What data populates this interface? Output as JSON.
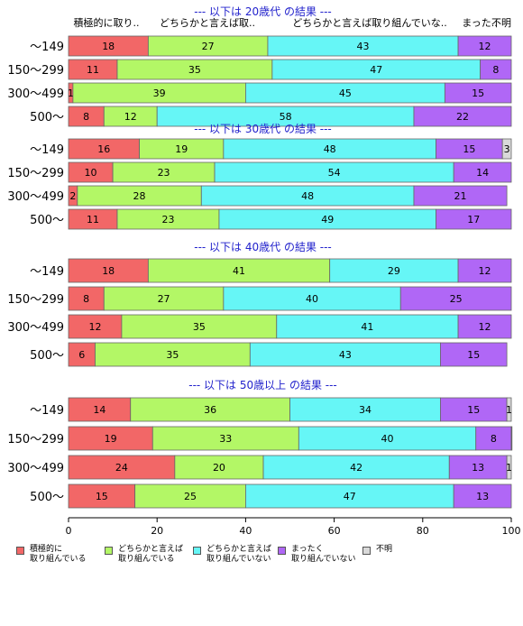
{
  "chart_data": {
    "type": "bar",
    "orientation": "horizontal",
    "stacked": true,
    "xlim": [
      0,
      100
    ],
    "xticks": [
      "0",
      "20",
      "40",
      "60",
      "80",
      "100"
    ],
    "column_headers": [
      "積極的に取り..",
      "どちらかと言えば取..",
      "どちらかと言えば取り組んでいな..",
      "まった..",
      "不明"
    ],
    "colors": [
      "#f26767",
      "#b3f766",
      "#66f6f6",
      "#b067f6",
      "#d9d9d9"
    ],
    "legend": [
      "積極的に\n取り組んでいる",
      "どちらかと言えば\n取り組んでいる",
      "どちらかと言えば\n取り組んでいない",
      "まったく\n取り組んでいない",
      "不明"
    ],
    "groups": [
      {
        "title": "--- 以下は 20歳代 の結果 ---",
        "rows": [
          {
            "label": "～149",
            "values": [
              18,
              27,
              43,
              12,
              0
            ]
          },
          {
            "label": "150～299",
            "values": [
              11,
              35,
              47,
              8,
              0
            ]
          },
          {
            "label": "300～499",
            "values": [
              1,
              39,
              45,
              15,
              0
            ]
          },
          {
            "label": "500～",
            "values": [
              8,
              12,
              58,
              22,
              0
            ]
          }
        ]
      },
      {
        "title": "--- 以下は 30歳代 の結果 ---",
        "rows": [
          {
            "label": "～149",
            "values": [
              16,
              19,
              48,
              15,
              3
            ]
          },
          {
            "label": "150～299",
            "values": [
              10,
              23,
              54,
              14,
              0
            ]
          },
          {
            "label": "300～499",
            "values": [
              2,
              28,
              48,
              21,
              0
            ]
          },
          {
            "label": "500～",
            "values": [
              11,
              23,
              49,
              17,
              0
            ]
          }
        ]
      },
      {
        "title": "--- 以下は 40歳代 の結果 ---",
        "rows": [
          {
            "label": "～149",
            "values": [
              18,
              41,
              29,
              12,
              0
            ]
          },
          {
            "label": "150～299",
            "values": [
              8,
              27,
              40,
              25,
              0
            ]
          },
          {
            "label": "300～499",
            "values": [
              12,
              35,
              41,
              12,
              0
            ]
          },
          {
            "label": "500～",
            "values": [
              6,
              35,
              43,
              15,
              0
            ]
          }
        ]
      },
      {
        "title": "--- 以下は 50歳以上 の結果 ---",
        "rows": [
          {
            "label": "～149",
            "values": [
              14,
              36,
              34,
              15,
              1
            ]
          },
          {
            "label": "150～299",
            "values": [
              19,
              33,
              40,
              8,
              1
            ]
          },
          {
            "label": "300～499",
            "values": [
              24,
              20,
              42,
              13,
              1
            ]
          },
          {
            "label": "500～",
            "values": [
              15,
              25,
              47,
              13,
              0
            ]
          }
        ]
      }
    ]
  }
}
